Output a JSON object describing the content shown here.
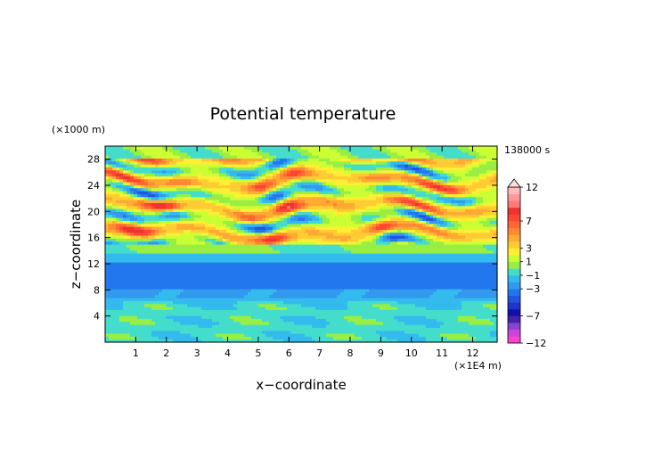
{
  "chart_data": {
    "type": "heatmap",
    "title": "Potential temperature",
    "xlabel": "x−coordinate",
    "ylabel": "z−coordinate",
    "x_unit": "(×1E4 m)",
    "y_unit": "(×1000 m)",
    "time_label": "138000 s",
    "xlim": [
      0,
      12.8
    ],
    "ylim": [
      0,
      30
    ],
    "x_ticks": [
      1,
      2,
      3,
      4,
      5,
      6,
      7,
      8,
      9,
      10,
      11,
      12
    ],
    "y_ticks": [
      4,
      8,
      12,
      16,
      20,
      24,
      28
    ],
    "colorbar": {
      "labels": [
        "12",
        "7",
        "3",
        "1",
        "−1",
        "−3",
        "−7",
        "−12"
      ],
      "label_values": [
        12,
        7,
        3,
        1,
        -1,
        -3,
        -7,
        -12
      ],
      "levels": [
        -12,
        -10,
        -9,
        -8,
        -7,
        -6,
        -5,
        -4,
        -3,
        -2,
        -1,
        0,
        1,
        2,
        3,
        4,
        5,
        6,
        7,
        8,
        9,
        10,
        11,
        12
      ],
      "colors": [
        "#ff44cc",
        "#cc44dd",
        "#8844cc",
        "#4422aa",
        "#1111aa",
        "#2233cc",
        "#2255dd",
        "#2277ee",
        "#3399ee",
        "#33bbee",
        "#44ddcc",
        "#99ee44",
        "#ccff33",
        "#ffee33",
        "#ffcc33",
        "#ffaa33",
        "#ff8833",
        "#ff6633",
        "#ff4433",
        "#ee3333",
        "#ff7777",
        "#ff9999",
        "#ffbbbb"
      ],
      "extend": "max"
    },
    "field_description_layers": [
      {
        "z_range": [
          0,
          7
        ],
        "approx_value": -0.5
      },
      {
        "z_range": [
          7,
          13
        ],
        "approx_value": -3
      },
      {
        "z_range": [
          13,
          15
        ],
        "approx_value": 0
      },
      {
        "z_range": [
          15,
          28
        ],
        "approx_value": "alternating 3 to 7 and -3"
      },
      {
        "z_range": [
          28,
          30
        ],
        "approx_value": 0
      }
    ]
  }
}
